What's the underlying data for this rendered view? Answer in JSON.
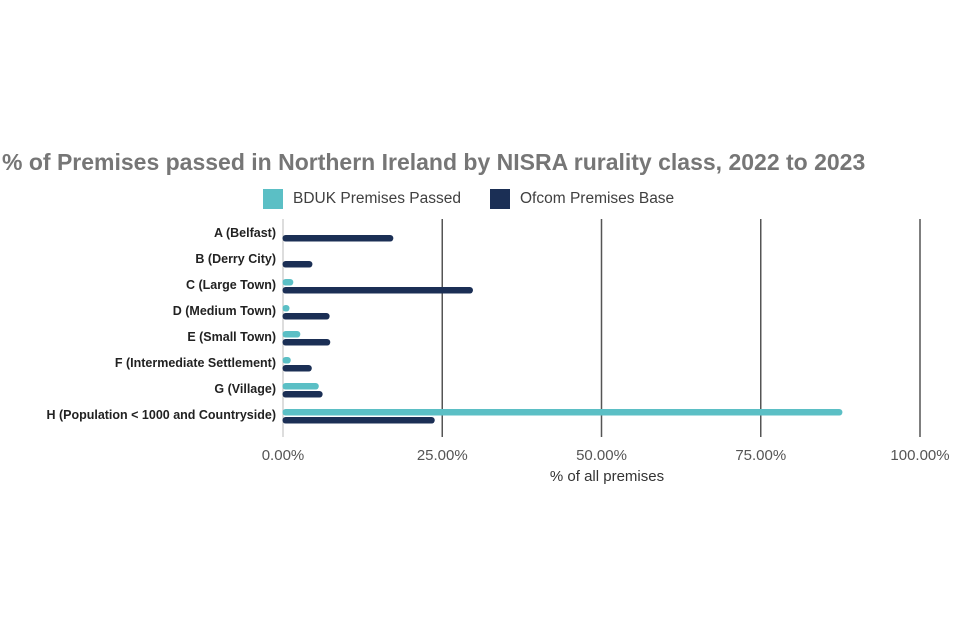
{
  "chart_data": {
    "type": "bar",
    "orientation": "horizontal",
    "title": "% of Premises passed in Northern Ireland by NISRA rurality class, 2022 to 2023",
    "xlabel": "% of all premises",
    "ylabel": "",
    "xlim": [
      0,
      100
    ],
    "xticks": [
      0,
      25,
      50,
      75,
      100
    ],
    "xtick_labels": [
      "0.00%",
      "25.00%",
      "50.00%",
      "75.00%",
      "100.00%"
    ],
    "grid": "vertical lines at ticks",
    "legend_position": "top",
    "categories": [
      "A (Belfast)",
      "B (Derry City)",
      "C (Large Town)",
      "D (Medium Town)",
      "E (Small Town)",
      "F (Intermediate Settlement)",
      "G (Village)",
      "H (Population < 1000 and Countryside)"
    ],
    "series": [
      {
        "name": "BDUK Premises Passed",
        "color": "#5bbfc5",
        "values": [
          0,
          0,
          1.7,
          1.1,
          2.8,
          1.3,
          5.7,
          87.9
        ]
      },
      {
        "name": "Ofcom Premises Base",
        "color": "#1b2f55",
        "values": [
          17.4,
          4.7,
          29.9,
          7.4,
          7.5,
          4.6,
          6.3,
          23.9
        ]
      }
    ]
  }
}
